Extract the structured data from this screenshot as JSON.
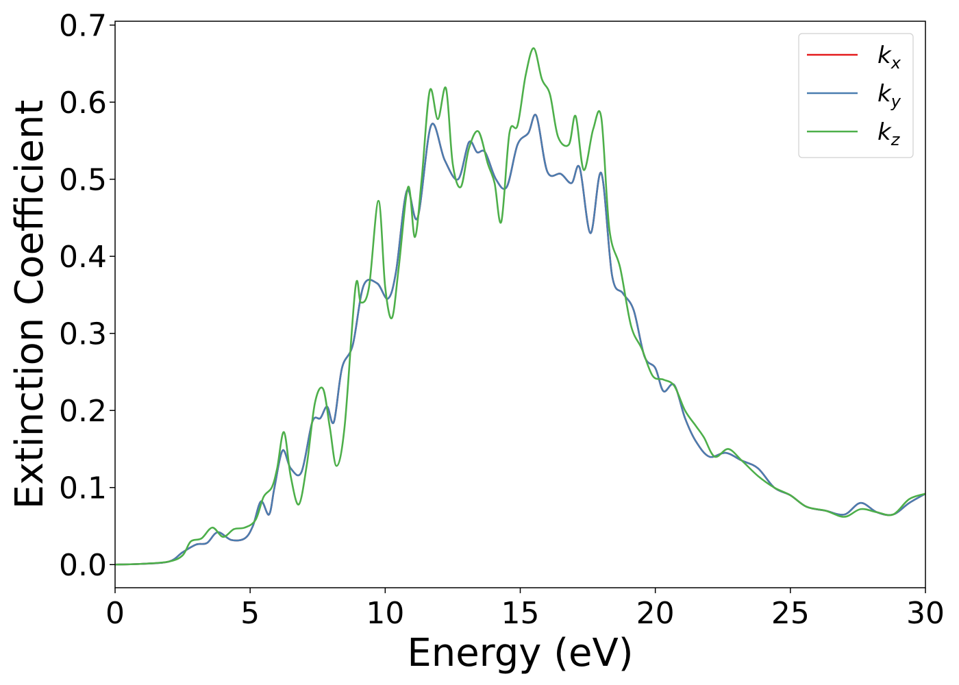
{
  "chart_data": {
    "type": "line",
    "xlabel": "Energy (eV)",
    "ylabel": "Extinction Coefficient",
    "xlim": [
      0,
      30
    ],
    "ylim": [
      -0.03,
      0.705
    ],
    "xticks": [
      "0",
      "5",
      "10",
      "15",
      "20",
      "25",
      "30"
    ],
    "yticks": [
      "0.0",
      "0.1",
      "0.2",
      "0.3",
      "0.4",
      "0.5",
      "0.6",
      "0.7"
    ],
    "grid": false,
    "legend_position": "top-right",
    "series": [
      {
        "name": "k",
        "sub": "x",
        "color": "#e41a1c",
        "x": [
          0,
          1,
          2,
          2.5,
          3,
          3.4,
          3.8,
          4.3,
          4.8,
          5.1,
          5.4,
          5.7,
          5.9,
          6.2,
          6.5,
          6.9,
          7.3,
          7.6,
          7.85,
          8.1,
          8.4,
          8.8,
          9.2,
          9.7,
          10.1,
          10.4,
          10.8,
          11.2,
          11.7,
          12.2,
          12.7,
          13.1,
          13.4,
          13.7,
          14.1,
          14.5,
          14.9,
          15.3,
          15.6,
          16.0,
          16.5,
          16.9,
          17.2,
          17.6,
          18.0,
          18.4,
          18.8,
          19.2,
          19.6,
          20.0,
          20.3,
          20.7,
          21.1,
          21.5,
          22.0,
          22.6,
          23.2,
          23.8,
          24.4,
          25.0,
          25.6,
          26.3,
          27.0,
          27.6,
          28.2,
          28.8,
          29.4,
          30
        ],
        "y": [
          0,
          0.001,
          0.004,
          0.016,
          0.026,
          0.028,
          0.042,
          0.032,
          0.034,
          0.05,
          0.082,
          0.065,
          0.1,
          0.148,
          0.125,
          0.12,
          0.185,
          0.19,
          0.205,
          0.185,
          0.255,
          0.285,
          0.362,
          0.365,
          0.345,
          0.38,
          0.485,
          0.45,
          0.57,
          0.525,
          0.5,
          0.548,
          0.535,
          0.535,
          0.5,
          0.49,
          0.545,
          0.56,
          0.582,
          0.51,
          0.507,
          0.495,
          0.515,
          0.43,
          0.508,
          0.375,
          0.352,
          0.33,
          0.27,
          0.255,
          0.225,
          0.233,
          0.19,
          0.16,
          0.14,
          0.145,
          0.135,
          0.125,
          0.1,
          0.09,
          0.075,
          0.07,
          0.065,
          0.08,
          0.068,
          0.065,
          0.08,
          0.092
        ]
      },
      {
        "name": "k",
        "sub": "y",
        "color": "#4a7db0",
        "x": [
          0,
          1,
          2,
          2.5,
          3,
          3.4,
          3.8,
          4.3,
          4.8,
          5.1,
          5.4,
          5.7,
          5.9,
          6.2,
          6.5,
          6.9,
          7.3,
          7.6,
          7.85,
          8.1,
          8.4,
          8.8,
          9.2,
          9.7,
          10.1,
          10.4,
          10.8,
          11.2,
          11.7,
          12.2,
          12.7,
          13.1,
          13.4,
          13.7,
          14.1,
          14.5,
          14.9,
          15.3,
          15.6,
          16.0,
          16.5,
          16.9,
          17.2,
          17.6,
          18.0,
          18.4,
          18.8,
          19.2,
          19.6,
          20.0,
          20.3,
          20.7,
          21.1,
          21.5,
          22.0,
          22.6,
          23.2,
          23.8,
          24.4,
          25.0,
          25.6,
          26.3,
          27.0,
          27.6,
          28.2,
          28.8,
          29.4,
          30
        ],
        "y": [
          0,
          0.001,
          0.004,
          0.016,
          0.026,
          0.028,
          0.042,
          0.032,
          0.034,
          0.05,
          0.082,
          0.065,
          0.1,
          0.148,
          0.125,
          0.12,
          0.185,
          0.19,
          0.205,
          0.185,
          0.255,
          0.285,
          0.362,
          0.365,
          0.345,
          0.38,
          0.485,
          0.45,
          0.57,
          0.525,
          0.5,
          0.548,
          0.535,
          0.535,
          0.5,
          0.49,
          0.545,
          0.56,
          0.582,
          0.51,
          0.507,
          0.495,
          0.515,
          0.43,
          0.508,
          0.375,
          0.352,
          0.33,
          0.27,
          0.255,
          0.225,
          0.233,
          0.19,
          0.16,
          0.14,
          0.145,
          0.135,
          0.125,
          0.1,
          0.09,
          0.075,
          0.07,
          0.065,
          0.08,
          0.068,
          0.065,
          0.08,
          0.092
        ]
      },
      {
        "name": "k",
        "sub": "z",
        "color": "#4daf4a",
        "x": [
          0,
          1,
          2,
          2.5,
          2.8,
          3.2,
          3.6,
          4.0,
          4.4,
          4.8,
          5.2,
          5.5,
          5.8,
          6.0,
          6.25,
          6.5,
          6.8,
          7.1,
          7.4,
          7.7,
          7.95,
          8.2,
          8.5,
          8.9,
          9.1,
          9.4,
          9.75,
          10.0,
          10.25,
          10.5,
          10.85,
          11.1,
          11.35,
          11.65,
          11.95,
          12.25,
          12.5,
          12.8,
          13.1,
          13.45,
          13.8,
          14.05,
          14.3,
          14.6,
          14.9,
          15.2,
          15.5,
          15.8,
          16.1,
          16.4,
          16.8,
          17.05,
          17.35,
          17.7,
          18.0,
          18.3,
          18.7,
          19.1,
          19.5,
          19.9,
          20.3,
          20.7,
          21.1,
          21.5,
          21.8,
          22.2,
          22.7,
          23.2,
          23.8,
          24.4,
          25.0,
          25.6,
          26.3,
          27.0,
          27.6,
          28.2,
          28.8,
          29.4,
          30
        ],
        "y": [
          0,
          0.001,
          0.004,
          0.012,
          0.03,
          0.034,
          0.048,
          0.036,
          0.046,
          0.048,
          0.058,
          0.088,
          0.1,
          0.125,
          0.172,
          0.115,
          0.078,
          0.13,
          0.21,
          0.228,
          0.178,
          0.128,
          0.18,
          0.36,
          0.34,
          0.36,
          0.472,
          0.36,
          0.32,
          0.385,
          0.49,
          0.425,
          0.5,
          0.615,
          0.578,
          0.618,
          0.52,
          0.49,
          0.54,
          0.562,
          0.52,
          0.495,
          0.445,
          0.56,
          0.57,
          0.635,
          0.67,
          0.63,
          0.61,
          0.555,
          0.545,
          0.582,
          0.512,
          0.565,
          0.58,
          0.435,
          0.385,
          0.31,
          0.28,
          0.245,
          0.24,
          0.232,
          0.2,
          0.18,
          0.165,
          0.14,
          0.15,
          0.135,
          0.115,
          0.1,
          0.09,
          0.075,
          0.07,
          0.062,
          0.072,
          0.068,
          0.065,
          0.085,
          0.092
        ]
      }
    ]
  }
}
